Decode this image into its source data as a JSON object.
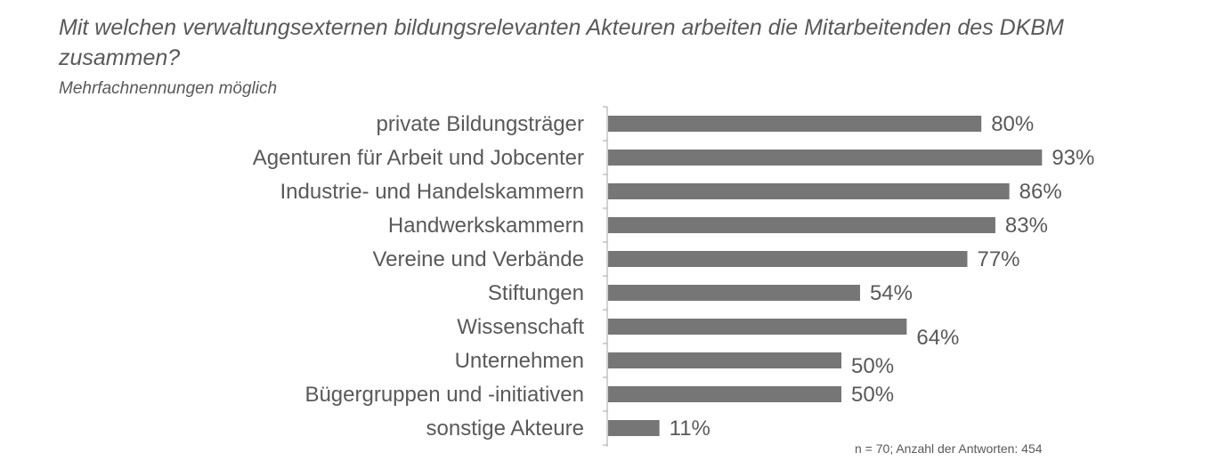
{
  "chart_data": {
    "type": "bar",
    "orientation": "horizontal",
    "title": "Mit welchen verwaltungsexternen bildungsrelevanten Akteuren arbeiten die Mitarbeitenden des DKBM zusammen?",
    "subtitle": "Mehrfachnennungen möglich",
    "categories": [
      "private Bildungsträger",
      "Agenturen für Arbeit und Jobcenter",
      "Industrie- und Handelskammern",
      "Handwerkskammern",
      "Vereine und Verbände",
      "Stiftungen",
      "Wissenschaft",
      "Unternehmen",
      "Bügergruppen und -initiativen",
      "sonstige Akteure"
    ],
    "values": [
      80,
      93,
      86,
      83,
      77,
      54,
      64,
      50,
      50,
      11
    ],
    "data_labels": [
      "80%",
      "93%",
      "86%",
      "83%",
      "77%",
      "54%",
      "64%",
      "50%",
      "50%",
      "11%"
    ],
    "xlim": [
      0,
      100
    ],
    "grid": false,
    "bar_color": "#767676",
    "footnote": "n = 70; Anzahl der Antworten: 454"
  }
}
